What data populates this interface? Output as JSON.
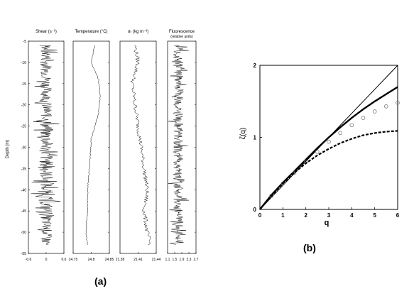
{
  "panel_a": {
    "caption": "(a)",
    "depth_axis": {
      "label": "Depth (m)",
      "ticks": [
        "-5",
        "-10",
        "-15",
        "-20",
        "-25",
        "-30",
        "-35",
        "-40",
        "-45",
        "-50",
        "-55"
      ]
    },
    "profiles": [
      {
        "id": "shear",
        "title": "Shear (s⁻¹)",
        "xticks": [
          "-0.6",
          "0",
          "0.6"
        ]
      },
      {
        "id": "temperature",
        "title": "Temperature (°C)",
        "xticks": [
          "24.75",
          "24.8",
          "24.85"
        ]
      },
      {
        "id": "sigma",
        "title": "σₜ (kg m⁻³)",
        "xticks": [
          "21.38",
          "21.41",
          "21.44"
        ]
      },
      {
        "id": "fluorescence",
        "title": "Fluorescence",
        "subtitle": "(relative units)",
        "xticks": [
          "1.1",
          "1.5",
          "1.9",
          "2.3",
          "2.7"
        ]
      }
    ]
  },
  "chart_data": [
    {
      "type": "line",
      "note": "panel (a): four vertical profiles vs depth; values approximate",
      "ylim": [
        -55,
        -5
      ],
      "series": [
        {
          "name": "Shear",
          "xlim": [
            -0.6,
            0.6
          ],
          "trend": "noise around 0, amplitude ~0.35, bursts near -25 to -45 m"
        },
        {
          "name": "Temperature",
          "xlim": [
            24.75,
            24.85
          ],
          "depth": [
            -6,
            -10,
            -14,
            -18,
            -22,
            -28,
            -35,
            -40,
            -45,
            -50,
            -53
          ],
          "values": [
            24.81,
            24.8,
            24.82,
            24.825,
            24.82,
            24.8,
            24.795,
            24.79,
            24.79,
            24.785,
            24.79
          ]
        },
        {
          "name": "Sigma-t",
          "xlim": [
            21.38,
            21.44
          ],
          "depth": [
            -6,
            -10,
            -15,
            -20,
            -25,
            -30,
            -35,
            -40,
            -45,
            -50,
            -53
          ],
          "values": [
            21.405,
            21.41,
            21.4,
            21.405,
            21.41,
            21.415,
            21.42,
            21.425,
            21.42,
            21.425,
            21.43
          ]
        },
        {
          "name": "Fluorescence",
          "xlim": [
            1.1,
            2.7
          ],
          "trend": "noisy around 1.7, amplitude ~0.5"
        }
      ]
    },
    {
      "type": "line",
      "caption": "(b)",
      "xlabel": "q",
      "ylabel": "ζ(q)",
      "xlim": [
        0,
        6
      ],
      "ylim": [
        0,
        2
      ],
      "xticks": [
        "0",
        "1",
        "2",
        "3",
        "4",
        "5",
        "6"
      ],
      "yticks": [
        "0",
        "1",
        "2"
      ],
      "x": [
        0,
        0.5,
        1,
        1.5,
        2,
        2.5,
        3,
        3.5,
        4,
        4.5,
        5,
        5.5,
        6
      ],
      "series": [
        {
          "style": "thin-line",
          "values": [
            0,
            0.167,
            0.333,
            0.5,
            0.667,
            0.833,
            1.0,
            1.167,
            1.333,
            1.5,
            1.667,
            1.833,
            2.0
          ]
        },
        {
          "style": "thick-line",
          "values": [
            0,
            0.2,
            0.37,
            0.53,
            0.69,
            0.85,
            1.0,
            1.14,
            1.27,
            1.39,
            1.5,
            1.6,
            1.7
          ]
        },
        {
          "style": "circles",
          "values": [
            0,
            0.19,
            0.36,
            0.51,
            0.66,
            0.8,
            0.94,
            1.06,
            1.17,
            1.27,
            1.36,
            1.43,
            1.48
          ]
        },
        {
          "style": "dashed",
          "values": [
            0,
            0.19,
            0.36,
            0.51,
            0.64,
            0.75,
            0.84,
            0.92,
            0.98,
            1.03,
            1.06,
            1.08,
            1.09
          ]
        }
      ]
    }
  ]
}
